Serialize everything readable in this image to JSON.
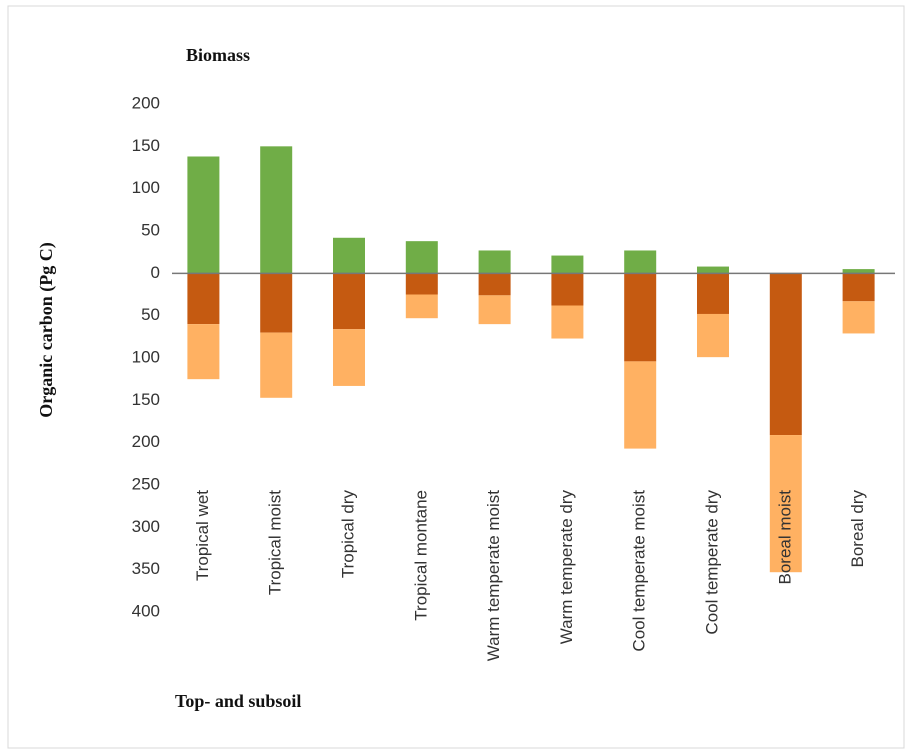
{
  "chart_data": {
    "type": "bar",
    "ylabel": "Organic carbon (Pg C)",
    "annotations": [
      "Biomass",
      "Top- and subsoil"
    ],
    "categories": [
      "Tropical wet",
      "Tropical moist",
      "Tropical dry",
      "Tropical montane",
      "Warm temperate moist",
      "Warm temperate dry",
      "Cool temperate moist",
      "Cool temperate dry",
      "Boreal moist",
      "Boreal dry"
    ],
    "series": [
      {
        "color": "#70ad47",
        "values": [
          138,
          150,
          42,
          38,
          27,
          21,
          27,
          8,
          0,
          5
        ]
      },
      {
        "color": "#c55a11",
        "values": [
          -60,
          -70,
          -66,
          -25,
          -26,
          -38,
          -104,
          -48,
          -191,
          -33
        ]
      },
      {
        "color": "#ffb162",
        "values": [
          -65,
          -77,
          -67,
          -28,
          -34,
          -39,
          -103,
          -51,
          -162,
          -38
        ]
      }
    ],
    "ylim": [
      -400,
      200
    ],
    "yticks": [
      200,
      150,
      100,
      50,
      0,
      {
        "value": -50,
        "label": "50"
      },
      {
        "value": -100,
        "label": "100"
      },
      {
        "value": -150,
        "label": "150"
      },
      {
        "value": -200,
        "label": "200"
      },
      {
        "value": -250,
        "label": "250"
      },
      {
        "value": -300,
        "label": "300"
      },
      {
        "value": -350,
        "label": "350"
      },
      {
        "value": -400,
        "label": "400"
      }
    ],
    "stacked": true
  }
}
